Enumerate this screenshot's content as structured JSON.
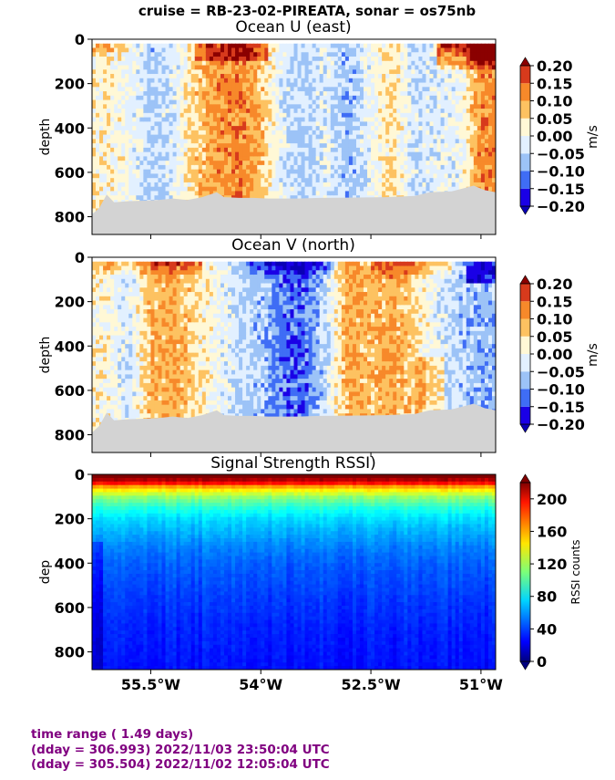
{
  "suptitle": "cruise = RB-23-02-PIREATA,  sonar = os75nb",
  "footer": {
    "line1": "time range ( 1.49 days)",
    "line2": "(dday = 306.993) 2022/11/03 23:50:04 UTC",
    "line3": "(dday = 305.504) 2022/11/02 12:05:04 UTC",
    "color": "#800080"
  },
  "chart_data": [
    {
      "type": "heatmap",
      "title": "Ocean U (east)",
      "ylabel": "depth",
      "colorbar_label": "m/s",
      "colorbar_ticks": [
        "0.20",
        "0.15",
        "0.10",
        "0.05",
        "0.00",
        "−0.05",
        "−0.10",
        "−0.15",
        "−0.20"
      ],
      "colorbar_levels": [
        -0.2,
        -0.15,
        -0.1,
        -0.05,
        0.0,
        0.05,
        0.1,
        0.15,
        0.2
      ],
      "colorbar_colors": [
        "#0000cc",
        "#3a5cf0",
        "#8fb6f5",
        "#dcecff",
        "#fff6d0",
        "#fdc060",
        "#f58a2a",
        "#d8391e",
        "#8b0000"
      ],
      "xlim": [
        -56.3,
        -50.8
      ],
      "ylim": [
        880,
        0
      ],
      "yticks": [
        0,
        200,
        400,
        600,
        800
      ],
      "xtick_labels": [],
      "bottom_bathymetry_color": "#d3d3d3",
      "x_bands": [
        -56.1,
        -55.8,
        -55.5,
        -55.2,
        -54.9,
        -54.6,
        -54.3,
        -54.0,
        -53.7,
        -53.4,
        -53.1,
        -52.8,
        -52.5,
        -52.2,
        -51.9,
        -51.6,
        -51.3,
        -51.0
      ],
      "mean_profile_by_band": [
        0.03,
        0.0,
        -0.06,
        -0.03,
        0.06,
        0.11,
        0.13,
        0.08,
        -0.03,
        -0.06,
        -0.02,
        -0.08,
        -0.01,
        0.05,
        -0.04,
        -0.02,
        -0.01,
        0.12
      ]
    },
    {
      "type": "heatmap",
      "title": "Ocean V (north)",
      "ylabel": "depth",
      "colorbar_label": "m/s",
      "colorbar_ticks": [
        "0.20",
        "0.15",
        "0.10",
        "0.05",
        "0.00",
        "−0.05",
        "−0.10",
        "−0.15",
        "−0.20"
      ],
      "colorbar_levels": [
        -0.2,
        -0.15,
        -0.1,
        -0.05,
        0.0,
        0.05,
        0.1,
        0.15,
        0.2
      ],
      "xlim": [
        -56.3,
        -50.8
      ],
      "ylim": [
        880,
        0
      ],
      "yticks": [
        0,
        200,
        400,
        600,
        800
      ],
      "xtick_labels": [],
      "x_bands": [
        -56.1,
        -55.8,
        -55.5,
        -55.2,
        -54.9,
        -54.6,
        -54.3,
        -54.0,
        -53.7,
        -53.4,
        -53.1,
        -52.8,
        -52.5,
        -52.2,
        -51.9,
        -51.6,
        -51.3,
        -51.0
      ],
      "mean_profile_by_band": [
        0.02,
        -0.04,
        0.08,
        0.1,
        0.05,
        0.0,
        -0.05,
        -0.06,
        -0.12,
        -0.13,
        -0.04,
        0.1,
        0.08,
        0.1,
        0.05,
        -0.02,
        -0.06,
        -0.08
      ]
    },
    {
      "type": "heatmap",
      "title": "Signal Strength RSSI)",
      "ylabel": "dep",
      "colorbar_label": "RSSI counts",
      "colorbar_ticks": [
        "200",
        "160",
        "120",
        "80",
        "40",
        "0"
      ],
      "colorbar_range": [
        0,
        220
      ],
      "xlim": [
        -56.3,
        -50.8
      ],
      "ylim": [
        880,
        0
      ],
      "yticks": [
        0,
        200,
        400,
        600,
        800
      ],
      "xtick_labels": [
        "55.5°W",
        "54°W",
        "52.5°W",
        "51°W"
      ],
      "xtick_values": [
        -55.5,
        -54.0,
        -52.5,
        -51.0
      ],
      "rssi_depth_profile": [
        [
          30,
          210
        ],
        [
          60,
          150
        ],
        [
          100,
          115
        ],
        [
          150,
          90
        ],
        [
          200,
          75
        ],
        [
          260,
          65
        ],
        [
          330,
          55
        ],
        [
          400,
          48
        ],
        [
          550,
          40
        ],
        [
          700,
          34
        ],
        [
          880,
          30
        ]
      ]
    }
  ]
}
